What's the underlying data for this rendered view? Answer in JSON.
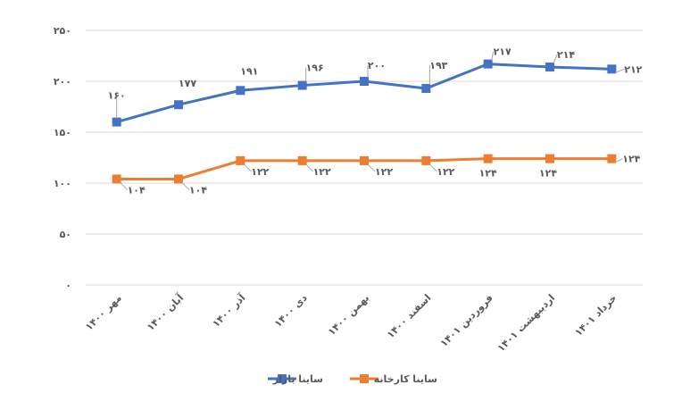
{
  "chart_data": {
    "type": "line",
    "title": "",
    "xlabel": "",
    "ylabel": "",
    "ylim": [
      0,
      250
    ],
    "grid": true,
    "legend_position": "bottom",
    "y_ticks": [
      0,
      50,
      100,
      150,
      200,
      250
    ],
    "y_tick_labels": [
      "۰",
      "۵۰",
      "۱۰۰",
      "۱۵۰",
      "۲۰۰",
      "۲۵۰"
    ],
    "categories": [
      "مهر ۱۴۰۰",
      "آبان ۱۴۰۰",
      "آذر ۱۴۰۰",
      "دی ۱۴۰۰",
      "بهمن ۱۴۰۰",
      "اسفند ۱۴۰۰",
      "فروردین ۱۴۰۱",
      "اردیبهشت ۱۴۰۱",
      "خرداد ۱۴۰۱"
    ],
    "series": [
      {
        "name": "ساینا بازار",
        "color": "#4472C4",
        "values": [
          160,
          177,
          191,
          196,
          200,
          193,
          217,
          214,
          212
        ]
      },
      {
        "name": "ساینا کارخانه",
        "color": "#ED7D31",
        "values": [
          104,
          104,
          122,
          122,
          122,
          122,
          124,
          124,
          124
        ]
      }
    ]
  }
}
